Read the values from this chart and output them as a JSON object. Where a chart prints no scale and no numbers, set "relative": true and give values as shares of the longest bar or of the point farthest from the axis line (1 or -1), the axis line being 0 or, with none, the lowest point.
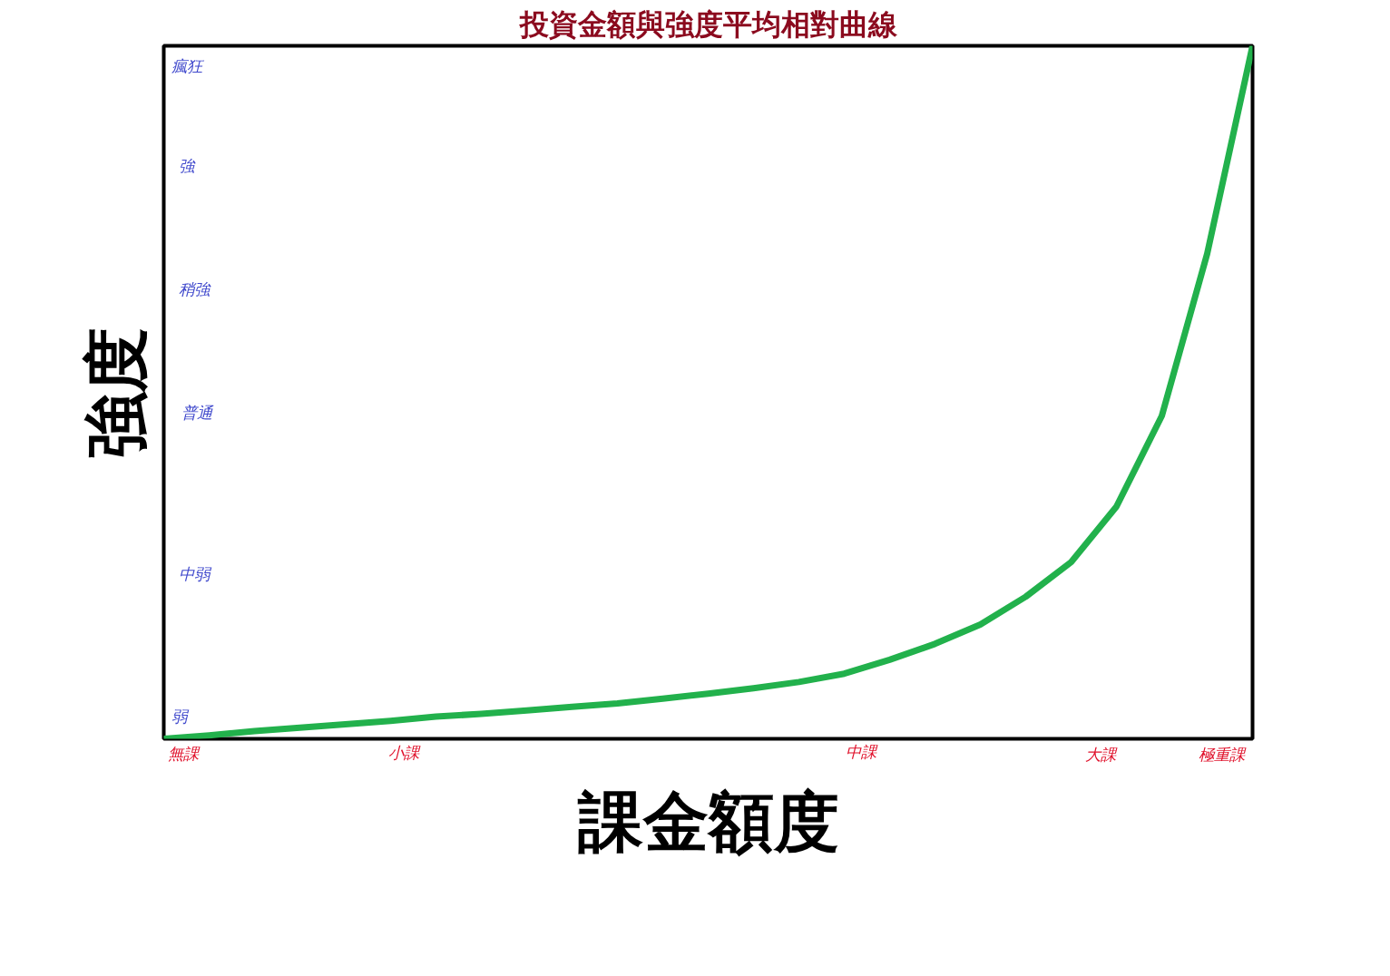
{
  "chart_data": {
    "type": "line",
    "title": "投資金額與強度平均相對曲線",
    "xlabel": "課金額度",
    "ylabel": "強度",
    "relative": true,
    "categories": [
      null,
      null,
      null,
      null,
      null,
      null,
      null,
      null,
      null,
      null,
      null,
      null,
      null,
      null,
      null,
      null,
      null,
      null,
      null,
      null,
      null,
      null,
      null,
      null,
      null
    ],
    "series": [
      {
        "color": "#22b14c",
        "values": [
          0,
          0.005,
          0.011,
          0.016,
          0.021,
          0.026,
          0.032,
          0.036,
          0.041,
          0.046,
          0.051,
          0.058,
          0.065,
          0.073,
          0.082,
          0.094,
          0.114,
          0.137,
          0.165,
          0.205,
          0.255,
          0.335,
          0.466,
          0.7,
          1.0
        ]
      }
    ],
    "annotations": [
      "瘋狂",
      "強",
      "稍強",
      "普通",
      "中弱",
      "弱",
      "無課",
      "小課",
      "中課",
      "大課",
      "極重課"
    ],
    "marker": "none",
    "line_style": "solid"
  }
}
